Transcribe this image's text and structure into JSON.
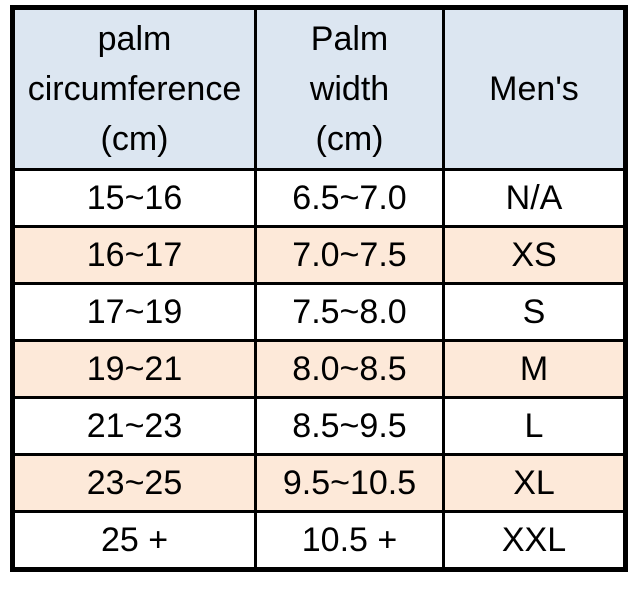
{
  "chart_data": {
    "type": "table",
    "columns": [
      "palm circumference (cm)",
      "Palm width (cm)",
      "Men's"
    ],
    "rows": [
      [
        "15~16",
        "6.5~7.0",
        "N/A"
      ],
      [
        "16~17",
        "7.0~7.5",
        "XS"
      ],
      [
        "17~19",
        "7.5~8.0",
        "S"
      ],
      [
        "19~21",
        "8.0~8.5",
        "M"
      ],
      [
        "21~23",
        "8.5~9.5",
        "L"
      ],
      [
        "23~25",
        "9.5~10.5",
        "XL"
      ],
      [
        "25 +",
        "10.5 +",
        "XXL"
      ]
    ],
    "highlighted_row_indexes": [
      1,
      3,
      5
    ]
  },
  "header": {
    "palm_circumference": {
      "line1": "palm",
      "line2": "circumference",
      "line3": "(cm)"
    },
    "palm_width": {
      "line1": "Palm",
      "line2": "width",
      "line3": "(cm)"
    },
    "mens": {
      "label": "Men's"
    }
  },
  "colors": {
    "header_bg": "#dce6f1",
    "highlight_bg": "#fde9d9",
    "row_bg": "#ffffff",
    "border": "#000000",
    "text": "#000000",
    "page_bg": "#ffffff"
  }
}
